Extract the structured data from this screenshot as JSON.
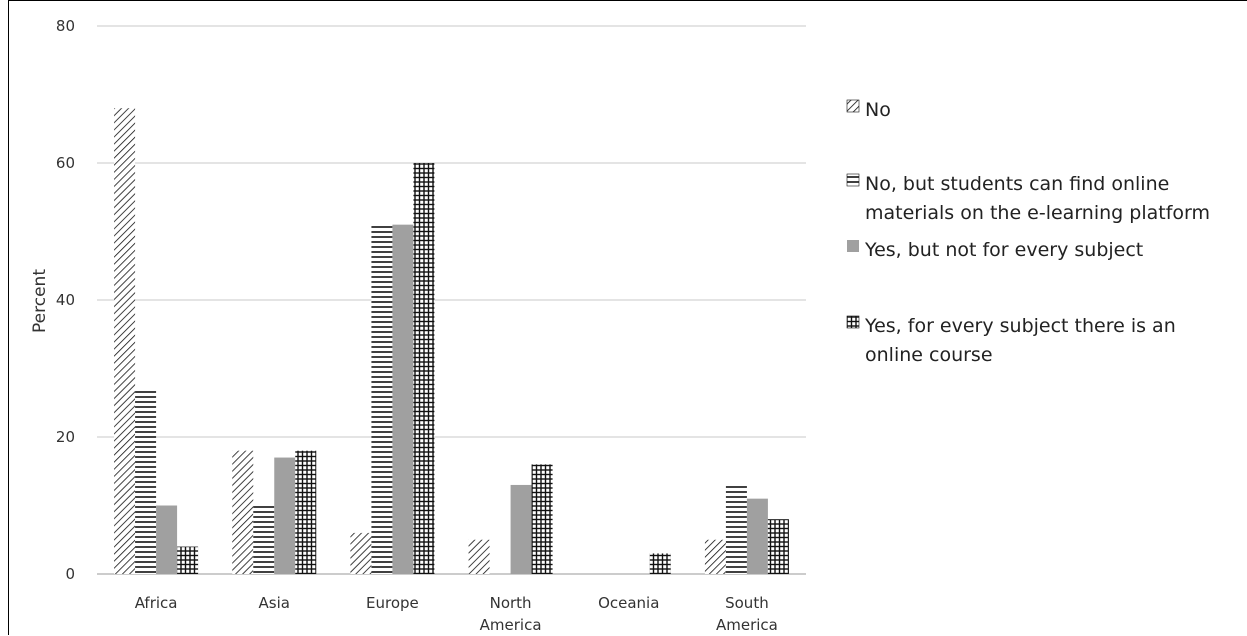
{
  "chart_data": {
    "type": "bar",
    "categories": [
      [
        "Africa"
      ],
      [
        "Asia"
      ],
      [
        "Europe"
      ],
      [
        "North",
        "America"
      ],
      [
        "Oceania"
      ],
      [
        "South",
        "America"
      ]
    ],
    "series": [
      {
        "name": "No",
        "values": [
          68,
          18,
          6,
          5,
          0,
          5
        ],
        "pattern": "diagonal"
      },
      {
        "name": "No, but students can find online materials on the e-learning platform",
        "values": [
          27,
          10,
          51,
          0,
          0,
          13
        ],
        "pattern": "horizontal"
      },
      {
        "name": "Yes, but not for every subject",
        "values": [
          10,
          17,
          51,
          13,
          0,
          11
        ],
        "pattern": "solid-gray"
      },
      {
        "name": "Yes, for every subject there is an online course",
        "values": [
          4,
          18,
          60,
          16,
          3,
          8
        ],
        "pattern": "grid"
      }
    ],
    "legend_lines": [
      [
        "No"
      ],
      [
        "No, but students can find online",
        "materials on the e-learning platform"
      ],
      [
        "Yes, but not for every subject"
      ],
      [
        "Yes, for every subject there is an",
        "online course"
      ]
    ],
    "ylabel": "Percent",
    "xlabel": "",
    "ylim": [
      0,
      80
    ],
    "yticks": [
      0,
      20,
      40,
      60,
      80
    ],
    "grid": true,
    "legend_position": "right",
    "colors": {
      "gray": "#a0a0a0",
      "ink": "#111111",
      "grid": "#c8c8c8"
    }
  }
}
